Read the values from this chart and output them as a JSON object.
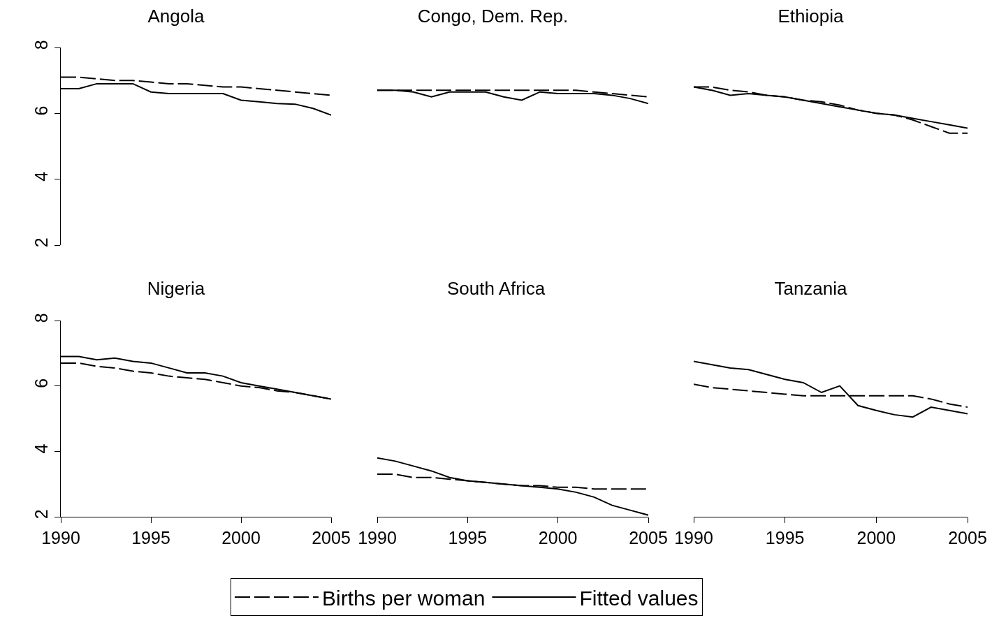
{
  "chart_data": [
    {
      "type": "line",
      "title": "Angola",
      "x": [
        1990,
        1991,
        1992,
        1993,
        1994,
        1995,
        1996,
        1997,
        1998,
        1999,
        2000,
        2001,
        2002,
        2003,
        2004,
        2005
      ],
      "xlim": [
        1990,
        2005
      ],
      "ylim": [
        2,
        8
      ],
      "xticks": [
        1990,
        1995,
        2000,
        2005
      ],
      "yticks": [
        2,
        4,
        6,
        8
      ],
      "tick_labels": "y",
      "grid": false,
      "legend": false,
      "series": [
        {
          "color": "#000000",
          "line_style": "dashed",
          "values": [
            7.1,
            7.1,
            7.05,
            7.0,
            7.0,
            6.95,
            6.9,
            6.9,
            6.85,
            6.8,
            6.8,
            6.75,
            6.7,
            6.65,
            6.6,
            6.55
          ]
        },
        {
          "color": "#000000",
          "line_style": "solid",
          "values": [
            6.75,
            6.75,
            6.9,
            6.9,
            6.9,
            6.65,
            6.6,
            6.6,
            6.6,
            6.6,
            6.4,
            6.35,
            6.3,
            6.28,
            6.15,
            5.95
          ]
        }
      ]
    },
    {
      "type": "line",
      "title": "Congo, Dem. Rep.",
      "x": [
        1990,
        1991,
        1992,
        1993,
        1994,
        1995,
        1996,
        1997,
        1998,
        1999,
        2000,
        2001,
        2002,
        2003,
        2004,
        2005
      ],
      "xlim": [
        1990,
        2005
      ],
      "ylim": [
        2,
        8
      ],
      "xticks": [
        1990,
        1995,
        2000,
        2005
      ],
      "yticks": [
        2,
        4,
        6,
        8
      ],
      "tick_labels": false,
      "grid": false,
      "legend": false,
      "series": [
        {
          "color": "#000000",
          "line_style": "dashed",
          "values": [
            6.7,
            6.7,
            6.7,
            6.7,
            6.7,
            6.7,
            6.7,
            6.7,
            6.7,
            6.7,
            6.7,
            6.7,
            6.65,
            6.6,
            6.55,
            6.5
          ]
        },
        {
          "color": "#000000",
          "line_style": "solid",
          "values": [
            6.7,
            6.7,
            6.65,
            6.5,
            6.65,
            6.65,
            6.65,
            6.5,
            6.4,
            6.65,
            6.6,
            6.6,
            6.6,
            6.55,
            6.45,
            6.3
          ]
        }
      ]
    },
    {
      "type": "line",
      "title": "Ethiopia",
      "x": [
        1990,
        1991,
        1992,
        1993,
        1994,
        1995,
        1996,
        1997,
        1998,
        1999,
        2000,
        2001,
        2002,
        2003,
        2004,
        2005
      ],
      "xlim": [
        1990,
        2005
      ],
      "ylim": [
        2,
        8
      ],
      "xticks": [
        1990,
        1995,
        2000,
        2005
      ],
      "yticks": [
        2,
        4,
        6,
        8
      ],
      "tick_labels": false,
      "grid": false,
      "legend": false,
      "series": [
        {
          "color": "#000000",
          "line_style": "dashed",
          "values": [
            6.8,
            6.8,
            6.7,
            6.65,
            6.55,
            6.5,
            6.4,
            6.35,
            6.25,
            6.1,
            6.0,
            5.95,
            5.8,
            5.6,
            5.4,
            5.4
          ]
        },
        {
          "color": "#000000",
          "line_style": "solid",
          "values": [
            6.8,
            6.7,
            6.55,
            6.6,
            6.55,
            6.5,
            6.4,
            6.3,
            6.2,
            6.1,
            6.0,
            5.95,
            5.85,
            5.75,
            5.65,
            5.55
          ]
        }
      ]
    },
    {
      "type": "line",
      "title": "Nigeria",
      "x": [
        1990,
        1991,
        1992,
        1993,
        1994,
        1995,
        1996,
        1997,
        1998,
        1999,
        2000,
        2001,
        2002,
        2003,
        2004,
        2005
      ],
      "xlim": [
        1990,
        2005
      ],
      "ylim": [
        2,
        8
      ],
      "xticks": [
        1990,
        1995,
        2000,
        2005
      ],
      "yticks": [
        2,
        4,
        6,
        8
      ],
      "grid": false,
      "legend": false,
      "series": [
        {
          "color": "#000000",
          "line_style": "dashed",
          "values": [
            6.7,
            6.7,
            6.6,
            6.55,
            6.45,
            6.4,
            6.3,
            6.25,
            6.2,
            6.1,
            6.0,
            5.95,
            5.85,
            5.8,
            5.7,
            5.6
          ]
        },
        {
          "color": "#000000",
          "line_style": "solid",
          "values": [
            6.9,
            6.9,
            6.8,
            6.85,
            6.75,
            6.7,
            6.55,
            6.4,
            6.4,
            6.3,
            6.1,
            6.0,
            5.9,
            5.8,
            5.7,
            5.6
          ]
        }
      ]
    },
    {
      "type": "line",
      "title": "South Africa",
      "x": [
        1990,
        1991,
        1992,
        1993,
        1994,
        1995,
        1996,
        1997,
        1998,
        1999,
        2000,
        2001,
        2002,
        2003,
        2004,
        2005
      ],
      "xlim": [
        1990,
        2005
      ],
      "ylim": [
        2,
        8
      ],
      "xticks": [
        1990,
        1995,
        2000,
        2005
      ],
      "yticks": [
        2,
        4,
        6,
        8
      ],
      "tick_labels": "x",
      "grid": false,
      "legend": "bottom",
      "series": [
        {
          "name": "Births per woman",
          "color": "#000000",
          "line_style": "dashed",
          "values": [
            3.3,
            3.3,
            3.2,
            3.2,
            3.15,
            3.1,
            3.05,
            3.0,
            2.95,
            2.95,
            2.9,
            2.9,
            2.85,
            2.85,
            2.85,
            2.85
          ]
        },
        {
          "name": "Fitted values",
          "color": "#000000",
          "line_style": "solid",
          "values": [
            3.8,
            3.7,
            3.55,
            3.4,
            3.2,
            3.1,
            3.05,
            3.0,
            2.95,
            2.9,
            2.85,
            2.75,
            2.6,
            2.35,
            2.2,
            2.05
          ]
        }
      ]
    },
    {
      "type": "line",
      "title": "Tanzania",
      "x": [
        1990,
        1991,
        1992,
        1993,
        1994,
        1995,
        1996,
        1997,
        1998,
        1999,
        2000,
        2001,
        2002,
        2003,
        2004,
        2005
      ],
      "xlim": [
        1990,
        2005
      ],
      "ylim": [
        2,
        8
      ],
      "xticks": [
        1990,
        1995,
        2000,
        2005
      ],
      "yticks": [
        2,
        4,
        6,
        8
      ],
      "tick_labels": "x",
      "grid": false,
      "legend": false,
      "series": [
        {
          "color": "#000000",
          "line_style": "dashed",
          "values": [
            6.05,
            5.95,
            5.9,
            5.85,
            5.8,
            5.75,
            5.7,
            5.7,
            5.7,
            5.7,
            5.7,
            5.7,
            5.7,
            5.6,
            5.45,
            5.35
          ]
        },
        {
          "color": "#000000",
          "line_style": "solid",
          "values": [
            6.75,
            6.65,
            6.55,
            6.5,
            6.35,
            6.2,
            6.1,
            5.8,
            6.0,
            5.4,
            5.25,
            5.12,
            5.05,
            5.35,
            5.25,
            5.15
          ]
        }
      ]
    }
  ]
}
